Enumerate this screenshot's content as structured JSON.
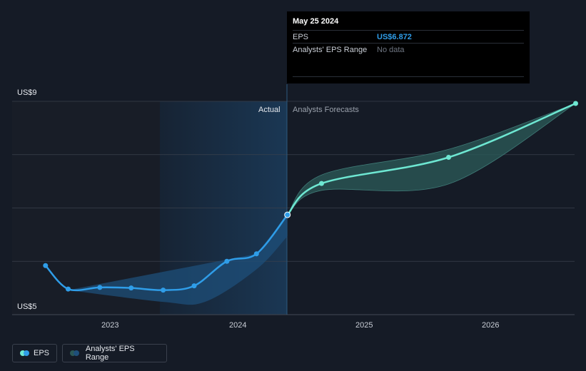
{
  "chart_data": {
    "type": "line",
    "y_axis": {
      "min_label": "US$5",
      "max_label": "US$9",
      "ylim": [
        5,
        9
      ]
    },
    "x_ticks": [
      "2023",
      "2024",
      "2025",
      "2026"
    ],
    "region_labels": {
      "actual": "Actual",
      "forecast": "Analysts Forecasts"
    },
    "series": [
      {
        "name": "EPS",
        "values": [
          {
            "x": "2022-06-30",
            "y": 5.92
          },
          {
            "x": "2022-09-03",
            "y": 5.48
          },
          {
            "x": "2022-12-03",
            "y": 5.51
          },
          {
            "x": "2023-03-03",
            "y": 5.5
          },
          {
            "x": "2023-06-03",
            "y": 5.46
          },
          {
            "x": "2023-08-31",
            "y": 5.54
          },
          {
            "x": "2023-12-03",
            "y": 6.0
          },
          {
            "x": "2024-02-26",
            "y": 6.14
          },
          {
            "x": "2024-05-25",
            "y": 6.872
          }
        ]
      },
      {
        "name": "EPS forecast",
        "values": [
          {
            "x": "2024-05-25",
            "y": 6.872
          },
          {
            "x": "2024-08-31",
            "y": 7.46
          },
          {
            "x": "2025-08-31",
            "y": 7.95
          },
          {
            "x": "2026-08-31",
            "y": 8.96
          }
        ]
      }
    ],
    "analysts_eps_range_past": {
      "upper": [
        {
          "x": "2024-02-26",
          "y": 6.14
        },
        {
          "x": "2024-05-25",
          "y": 6.872
        }
      ],
      "lower": [
        {
          "x": "2022-09-03",
          "y": 5.46
        },
        {
          "x": "2023-06-03",
          "y": 5.24
        },
        {
          "x": "2023-10-01",
          "y": 5.24
        },
        {
          "x": "2024-02-26",
          "y": 5.85
        },
        {
          "x": "2024-05-25",
          "y": 6.47
        }
      ]
    },
    "analysts_eps_range_forecast": {
      "upper": [
        {
          "x": "2024-05-25",
          "y": 6.872
        },
        {
          "x": "2024-08-31",
          "y": 7.62
        },
        {
          "x": "2025-08-31",
          "y": 8.1
        },
        {
          "x": "2026-08-31",
          "y": 8.96
        }
      ],
      "lower": [
        {
          "x": "2024-05-25",
          "y": 6.872
        },
        {
          "x": "2024-08-31",
          "y": 7.33
        },
        {
          "x": "2025-08-31",
          "y": 7.45
        },
        {
          "x": "2026-08-31",
          "y": 8.96
        }
      ]
    },
    "grid": true,
    "legend_position": "bottom-left"
  },
  "tooltip": {
    "date": "May 25 2024",
    "eps_label": "EPS",
    "eps_value": "US$6.872",
    "range_label": "Analysts' EPS Range",
    "range_value": "No data"
  },
  "legend": {
    "eps_label": "EPS",
    "range_label": "Analysts' EPS Range"
  },
  "colors": {
    "eps_line": "#2f9de8",
    "forecast_line": "#6ee7d2",
    "past_range": "#1e4f7a",
    "forecast_range": "#2b5856",
    "grid": "#3a414d",
    "background": "#151b26"
  }
}
